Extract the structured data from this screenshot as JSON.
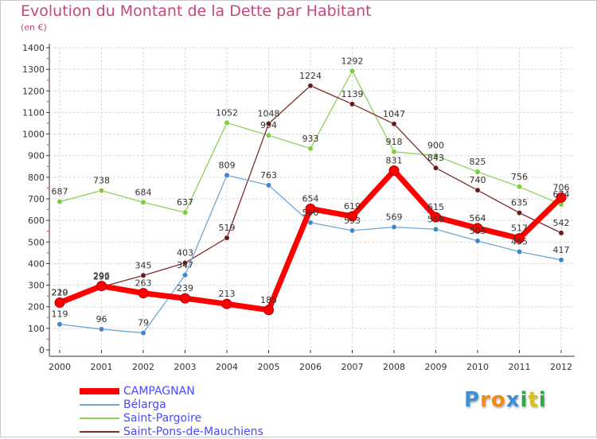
{
  "header": {
    "title": "Evolution du Montant de la Dette par Habitant",
    "unit": "(en €)"
  },
  "logo": {
    "letters": [
      "P",
      "r",
      "o",
      "x",
      "i",
      "t",
      "i"
    ]
  },
  "chart_data": {
    "type": "line",
    "title": "Evolution du Montant de la Dette par Habitant",
    "ylabel": "(en €)",
    "xlabel": "",
    "ylim": [
      0,
      1400
    ],
    "yticks": [
      0,
      100,
      200,
      300,
      400,
      500,
      600,
      700,
      800,
      900,
      1000,
      1100,
      1200,
      1300,
      1400
    ],
    "grid": true,
    "legend_position": "bottom-left",
    "x": [
      "2000",
      "2001",
      "2002",
      "2003",
      "2004",
      "2005",
      "2006",
      "2007",
      "2008",
      "2009",
      "2010",
      "2011",
      "2012"
    ],
    "series": [
      {
        "name": "Saint-Pargoire",
        "color": "#8fd05a",
        "marker": "#7ccf3c",
        "values": [
          687,
          738,
          684,
          637,
          1052,
          994,
          933,
          1292,
          918,
          900,
          825,
          756,
          674
        ]
      },
      {
        "name": "Saint-Pons-de-Mauchiens",
        "color": "#7b2b2b",
        "marker": "#6a1a1a",
        "values": [
          220,
          292,
          345,
          403,
          519,
          1048,
          1224,
          1139,
          1047,
          843,
          740,
          635,
          542
        ]
      },
      {
        "name": "Bélarga",
        "color": "#6fa8d6",
        "marker": "#3f87c9",
        "values": [
          119,
          96,
          79,
          347,
          809,
          763,
          590,
          553,
          569,
          559,
          505,
          455,
          417
        ]
      },
      {
        "name": "CAMPAGNAN",
        "color": "#ff0000",
        "marker": "#ff0000",
        "values": [
          219,
          296,
          263,
          239,
          213,
          185,
          654,
          619,
          831,
          615,
          564,
          517,
          706
        ]
      }
    ],
    "legend_order": [
      "CAMPAGNAN",
      "Bélarga",
      "Saint-Pargoire",
      "Saint-Pons-de-Mauchiens"
    ]
  }
}
